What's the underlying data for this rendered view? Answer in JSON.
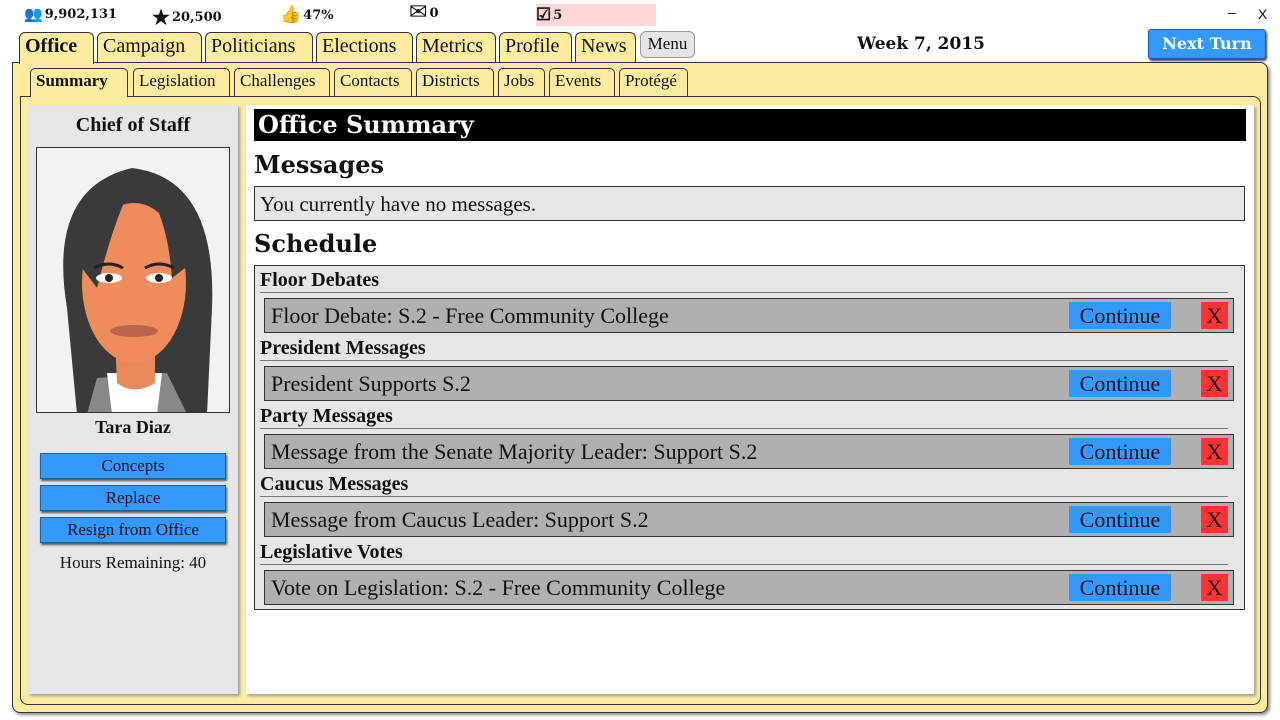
{
  "stats": {
    "population": "9,902,131",
    "stars": "20,500",
    "approval": "47%",
    "mail": "0",
    "tasks": "5"
  },
  "window": {
    "minimize": "–",
    "close": "X"
  },
  "tabs": [
    "Office",
    "Campaign",
    "Politicians",
    "Elections",
    "Metrics",
    "Profile",
    "News"
  ],
  "menu_label": "Menu",
  "week": "Week 7, 2015",
  "next_turn": "Next Turn",
  "subtabs": [
    "Summary",
    "Legislation",
    "Challenges",
    "Contacts",
    "Districts",
    "Jobs",
    "Events",
    "Protégé"
  ],
  "sidebar": {
    "title": "Chief of Staff",
    "name": "Tara Diaz",
    "buttons": [
      "Concepts",
      "Replace",
      "Resign from Office"
    ],
    "hours": "Hours Remaining: 40"
  },
  "main": {
    "title": "Office Summary",
    "messages_heading": "Messages",
    "messages_text": "You currently have no messages.",
    "schedule_heading": "Schedule",
    "continue_label": "Continue",
    "dismiss_label": "X",
    "sections": [
      {
        "title": "Floor Debates",
        "item": "Floor Debate: S.2 - Free Community College"
      },
      {
        "title": "President Messages",
        "item": "President Supports S.2"
      },
      {
        "title": "Party Messages",
        "item": "Message from the Senate Majority Leader: Support S.2"
      },
      {
        "title": "Caucus Messages",
        "item": "Message from Caucus Leader: Support S.2"
      },
      {
        "title": "Legislative Votes",
        "item": "Vote on Legislation: S.2 - Free Community College"
      }
    ]
  }
}
